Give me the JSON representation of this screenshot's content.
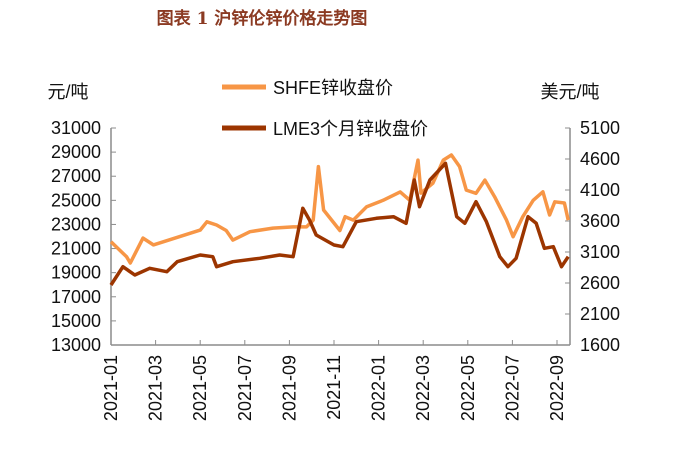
{
  "chart_data": {
    "type": "line",
    "title": "图表 1  沪锌伦锌价格走势图",
    "ylabel_left": "元/吨",
    "ylabel_right": "美元/吨",
    "ylim_left": [
      13000,
      31000
    ],
    "ylim_right": [
      1600,
      5100
    ],
    "yticks_left": [
      "31000",
      "29000",
      "27000",
      "25000",
      "23000",
      "21000",
      "19000",
      "17000",
      "15000",
      "13000"
    ],
    "yticks_right": [
      "5100",
      "4600",
      "4100",
      "3600",
      "3100",
      "2600",
      "2100",
      "1600"
    ],
    "xticks": [
      "2021-01",
      "2021-03",
      "2021-05",
      "2021-07",
      "2021-09",
      "2021-11",
      "2022-01",
      "2022-03",
      "2022-05",
      "2022-07",
      "2022-09"
    ],
    "grid": false,
    "legend_position": "top-center",
    "series": [
      {
        "name": "SHFE锌收盘价",
        "axis": "left",
        "color": "#F79646",
        "x": [
          "2021-01-01",
          "2021-01-22",
          "2021-01-27",
          "2021-02-14",
          "2021-02-28",
          "2021-05-01",
          "2021-05-10",
          "2021-05-23",
          "2021-06-06",
          "2021-06-15",
          "2021-07-08",
          "2021-08-09",
          "2021-09-06",
          "2021-09-24",
          "2021-10-03",
          "2021-10-10",
          "2021-10-17",
          "2021-11-09",
          "2021-11-16",
          "2021-11-27",
          "2021-12-15",
          "2022-01-07",
          "2022-01-30",
          "2022-02-13",
          "2022-02-24",
          "2022-02-28",
          "2022-03-14",
          "2022-03-28",
          "2022-04-09",
          "2022-04-20",
          "2022-04-29",
          "2022-05-12",
          "2022-05-24",
          "2022-06-07",
          "2022-06-23",
          "2022-07-02",
          "2022-07-15",
          "2022-07-29",
          "2022-08-12",
          "2022-08-21",
          "2022-08-28",
          "2022-09-11",
          "2022-09-16"
        ],
        "y": [
          21560,
          20320,
          19800,
          21870,
          21300,
          22530,
          23220,
          22950,
          22500,
          21700,
          22400,
          22700,
          22800,
          22800,
          23360,
          27800,
          24200,
          22500,
          23640,
          23360,
          24470,
          25000,
          25700,
          25000,
          28340,
          25600,
          26430,
          28340,
          28760,
          27800,
          25850,
          25580,
          26680,
          25300,
          23360,
          21980,
          23640,
          25000,
          25710,
          23780,
          24880,
          24780,
          23360
        ]
      },
      {
        "name": "LME3个月锌收盘价",
        "axis": "right",
        "color": "#9C3500",
        "x": [
          "2021-01-01",
          "2021-01-17",
          "2021-02-03",
          "2021-02-23",
          "2021-03-16",
          "2021-03-30",
          "2021-05-01",
          "2021-05-18",
          "2021-05-23",
          "2021-06-15",
          "2021-07-21",
          "2021-08-18",
          "2021-09-06",
          "2021-09-19",
          "2021-09-28",
          "2021-10-07",
          "2021-10-31",
          "2021-11-13",
          "2021-12-01",
          "2021-12-28",
          "2022-01-21",
          "2022-02-08",
          "2022-02-19",
          "2022-02-26",
          "2022-03-10",
          "2022-03-31",
          "2022-04-16",
          "2022-04-27",
          "2022-05-12",
          "2022-05-26",
          "2022-06-14",
          "2022-06-25",
          "2022-07-06",
          "2022-07-22",
          "2022-08-03",
          "2022-08-14",
          "2022-08-26",
          "2022-09-07",
          "2022-09-16"
        ],
        "y": [
          2568,
          2863,
          2729,
          2837,
          2782,
          2944,
          3051,
          3024,
          2863,
          2944,
          2998,
          3051,
          3024,
          3805,
          3616,
          3374,
          3213,
          3186,
          3589,
          3643,
          3670,
          3563,
          4261,
          3831,
          4261,
          4530,
          3670,
          3563,
          3911,
          3589,
          3024,
          2863,
          2998,
          3670,
          3563,
          3160,
          3186,
          2863,
          3024
        ]
      }
    ]
  }
}
